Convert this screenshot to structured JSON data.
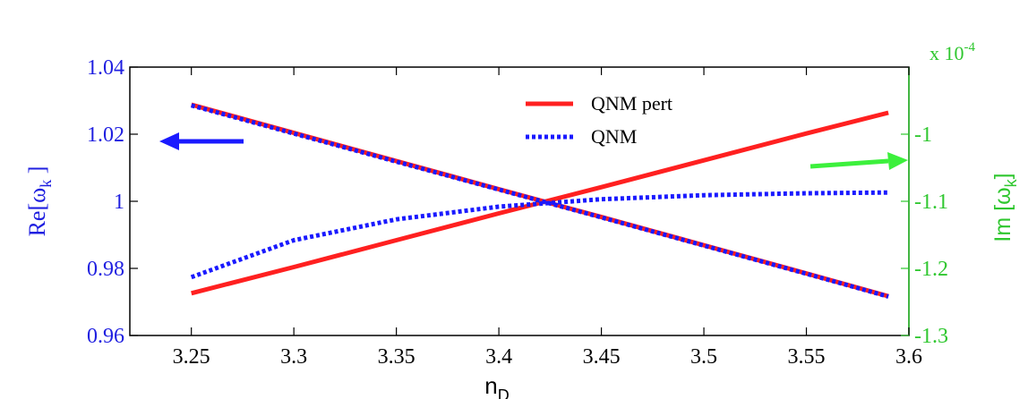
{
  "chart_data": {
    "type": "line",
    "x": [
      3.25,
      3.3,
      3.35,
      3.4,
      3.45,
      3.5,
      3.55,
      3.59
    ],
    "xlim": [
      3.22,
      3.6
    ],
    "x_ticks": [
      "3.25",
      "3.3",
      "3.35",
      "3.4",
      "3.45",
      "3.5",
      "3.55",
      "3.6"
    ],
    "xlabel": "n",
    "xlabel_sub": "D",
    "left_axis": {
      "label_main": "Re[ω",
      "label_sub": "k",
      "label_close": " ]",
      "ylim": [
        0.96,
        1.04
      ],
      "ticks": [
        "0.96",
        "0.98",
        "1",
        "1.02",
        "1.04"
      ],
      "color": "#1f1fe0"
    },
    "right_axis": {
      "label_main": "Im [ω",
      "label_sub": "k",
      "label_close": "]",
      "ylim": [
        -1.3,
        -0.9
      ],
      "ticks": [
        "-1.3",
        "-1.2",
        "-1.1",
        "-1"
      ],
      "multiplier_base": "x 10",
      "multiplier_exp": "-4",
      "color": "#2fc72f"
    },
    "series": [
      {
        "name": "QNM pert",
        "axis": "left",
        "style": "solid",
        "color": "#ff2020",
        "values": [
          1.0288,
          1.0204,
          1.012,
          1.0036,
          0.9953,
          0.9869,
          0.9785,
          0.9717
        ]
      },
      {
        "name": "QNM",
        "axis": "left",
        "style": "dotted",
        "color": "#1a1aff",
        "values": [
          1.0286,
          1.0202,
          1.0118,
          1.0035,
          0.9952,
          0.9868,
          0.9784,
          0.9716
        ]
      },
      {
        "name": "QNM pert",
        "axis": "right",
        "style": "solid",
        "color": "#ff2020",
        "values": [
          -1.237,
          -1.198,
          -1.158,
          -1.118,
          -1.079,
          -1.039,
          -0.999,
          -0.968
        ]
      },
      {
        "name": "QNM",
        "axis": "right",
        "style": "dotted",
        "color": "#1a1aff",
        "values": [
          -1.213,
          -1.158,
          -1.127,
          -1.108,
          -1.097,
          -1.091,
          -1.088,
          -1.087
        ]
      }
    ],
    "legend": {
      "position": "top-center",
      "entries": [
        {
          "label": "QNM pert",
          "style": "solid",
          "color": "#ff2020"
        },
        {
          "label": "QNM",
          "style": "dotted",
          "color": "#1a1aff"
        }
      ]
    },
    "annotations": [
      {
        "type": "arrow",
        "direction": "left",
        "color": "#1a1aff",
        "meaning": "left axis"
      },
      {
        "type": "arrow",
        "direction": "right",
        "color": "#3cf03c",
        "meaning": "right axis"
      }
    ]
  }
}
